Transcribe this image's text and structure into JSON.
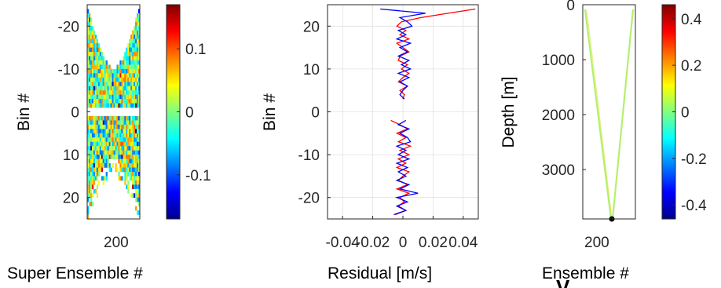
{
  "chart_data": [
    {
      "type": "heatmap",
      "xlabel": "Super Ensemble #",
      "ylabel": "Bin #",
      "x_ticks": [
        "200"
      ],
      "y_ticks": [
        -20,
        -10,
        0,
        10,
        20
      ],
      "ylim": [
        -25,
        25
      ],
      "y_reversed": true,
      "colorbar": {
        "ticks": [
          0.1,
          0,
          -0.1
        ],
        "tick_labels": [
          "0.1",
          "0",
          "-0.1"
        ],
        "range": [
          -0.17,
          0.17
        ],
        "colormap": "jet"
      }
    },
    {
      "type": "line",
      "xlabel": "Residual [m/s]",
      "ylabel": "Bin #",
      "x_ticks": [
        -0.04,
        -0.02,
        0,
        0.02,
        0.04
      ],
      "x_tick_labels": [
        "-0.04",
        "-0.02",
        "0",
        "0.02",
        "0.04"
      ],
      "xlim": [
        -0.05,
        0.05
      ],
      "y_ticks": [
        20,
        10,
        0,
        -10,
        -20
      ],
      "ylim": [
        -25,
        25
      ],
      "grid": true,
      "series": [
        {
          "color": "#ff0000",
          "y": [
            24,
            23,
            22,
            21,
            20,
            19,
            18,
            17,
            16,
            15,
            14,
            13,
            12,
            11,
            10,
            9,
            8,
            7,
            6,
            5,
            4,
            3,
            -2,
            -3,
            -4,
            -5,
            -6,
            -7,
            -8,
            -9,
            -10,
            -11,
            -12,
            -13,
            -14,
            -15,
            -16,
            -17,
            -18,
            -19,
            -20,
            -21,
            -22,
            -23,
            -24
          ],
          "x": [
            0.048,
            0.03,
            0.012,
            -0.001,
            -0.004,
            0.002,
            -0.002,
            0.004,
            -0.004,
            0.0,
            0.004,
            -0.002,
            -0.003,
            0.003,
            -0.001,
            0.004,
            0.0,
            -0.003,
            0.003,
            -0.002,
            0.001,
            0.0,
            -0.008,
            -0.002,
            0.003,
            -0.004,
            0.002,
            -0.003,
            0.005,
            -0.002,
            0.004,
            -0.003,
            0.002,
            -0.004,
            0.004,
            0.0,
            -0.003,
            0.003,
            -0.004,
            0.004,
            -0.002,
            0.001,
            -0.003,
            0.002,
            -0.005
          ]
        },
        {
          "color": "#0000ff",
          "y": [
            24,
            23,
            22,
            21,
            20,
            19,
            18,
            17,
            16,
            15,
            14,
            13,
            12,
            11,
            10,
            9,
            8,
            7,
            6,
            5,
            4,
            3,
            -2,
            -3,
            -4,
            -5,
            -6,
            -7,
            -8,
            -9,
            -10,
            -11,
            -12,
            -13,
            -14,
            -15,
            -16,
            -17,
            -18,
            -19,
            -20,
            -21,
            -22,
            -23,
            -24
          ],
          "x": [
            -0.015,
            0.015,
            -0.002,
            0.003,
            0.006,
            -0.003,
            0.002,
            -0.004,
            0.005,
            -0.002,
            0.003,
            -0.003,
            0.004,
            -0.001,
            0.005,
            -0.003,
            0.004,
            -0.002,
            0.003,
            0.0,
            -0.002,
            0.001,
            0.002,
            -0.003,
            0.004,
            -0.002,
            0.003,
            0.005,
            -0.004,
            0.002,
            -0.003,
            0.004,
            -0.004,
            0.003,
            -0.003,
            0.002,
            -0.004,
            0.004,
            -0.002,
            0.01,
            -0.004,
            0.003,
            -0.004,
            0.002,
            -0.006
          ]
        }
      ]
    },
    {
      "type": "line",
      "xlabel": "Ensemble #",
      "ylabel": "Depth [m]",
      "x_ticks": [
        "200"
      ],
      "y_ticks": [
        0,
        1000,
        2000,
        3000
      ],
      "ylim": [
        0,
        3900
      ],
      "y_reversed": true,
      "colorbar": {
        "ticks": [
          0.4,
          0.2,
          0,
          -0.2,
          -0.4
        ],
        "tick_labels": [
          "0.4",
          "0.2",
          "0",
          "-0.2",
          "-0.4"
        ],
        "range": [
          -0.46,
          0.46
        ],
        "colormap": "jet"
      },
      "stray_label": "V"
    }
  ]
}
